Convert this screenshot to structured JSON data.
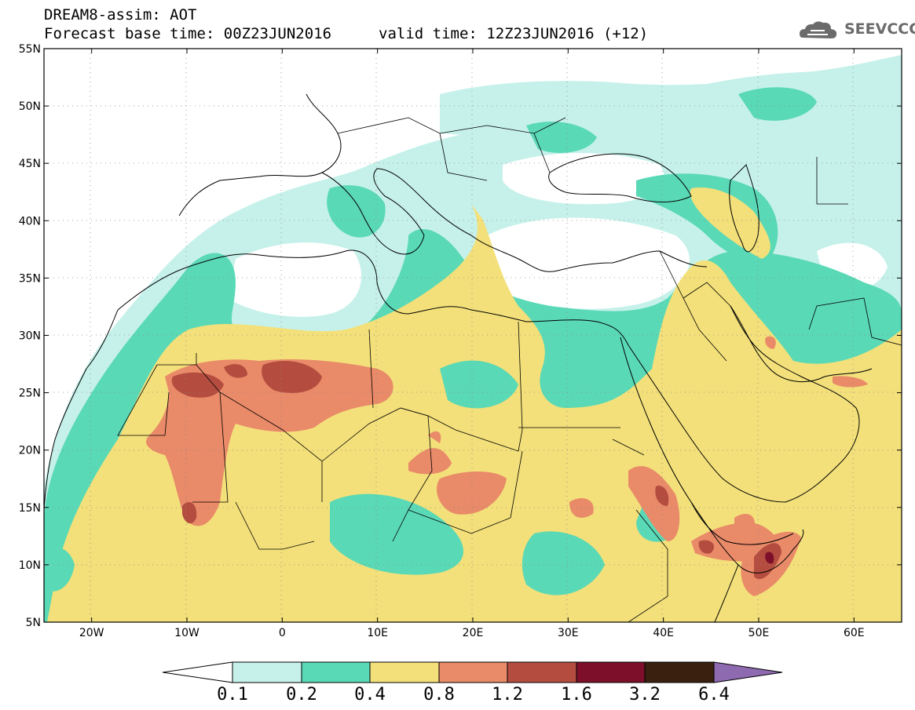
{
  "header": {
    "title": "DREAM8-assim: AOT",
    "base_time": "Forecast base time: 00Z23JUN2016",
    "valid_time": "valid time: 12Z23JUN2016 (+12)",
    "logo_text": "SEEVCCC"
  },
  "axes": {
    "lat_labels": [
      "55N",
      "50N",
      "45N",
      "40N",
      "35N",
      "30N",
      "25N",
      "20N",
      "15N",
      "10N",
      "5N"
    ],
    "lat_values": [
      55,
      50,
      45,
      40,
      35,
      30,
      25,
      20,
      15,
      10,
      5
    ],
    "lon_labels": [
      "20W",
      "10W",
      "0",
      "10E",
      "20E",
      "30E",
      "40E",
      "50E",
      "60E"
    ],
    "lon_values": [
      -20,
      -10,
      0,
      10,
      20,
      30,
      40,
      50,
      60
    ],
    "lon_range": [
      -25,
      65
    ],
    "lat_range": [
      5,
      55
    ]
  },
  "colorbar": {
    "labels": [
      "0.1",
      "0.2",
      "0.4",
      "0.8",
      "1.2",
      "1.6",
      "3.2",
      "6.4"
    ],
    "colors": [
      "#ffffff",
      "#c6f1ea",
      "#5ad9b6",
      "#f3e07a",
      "#e98a69",
      "#b44d3f",
      "#7d0f2a",
      "#3a200f",
      "#8e6ab0"
    ]
  },
  "colors": {
    "c01": "#c6f1ea",
    "c02": "#5ad9b6",
    "c04": "#f3e07a",
    "c08": "#e98a69",
    "c12": "#b44d3f",
    "c16": "#7d0f2a"
  }
}
